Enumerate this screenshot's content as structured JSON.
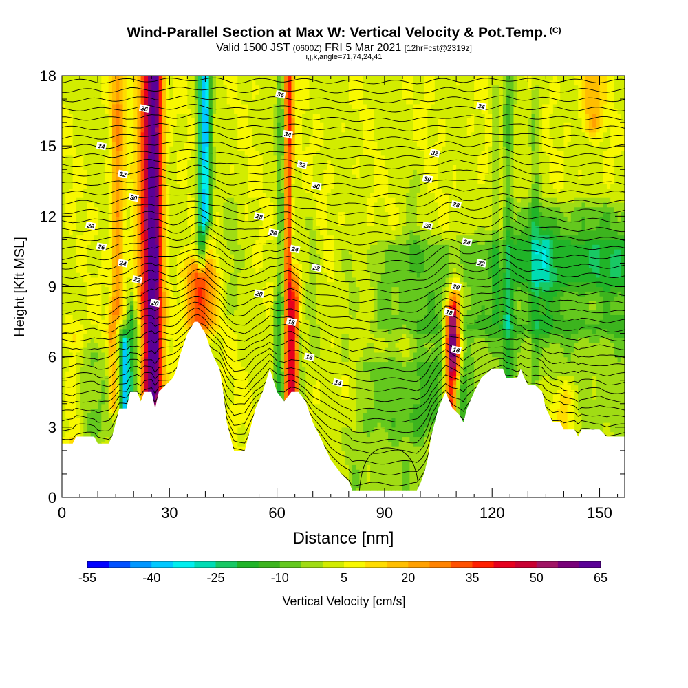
{
  "header": {
    "title": "Wind-Parallel Section at Max W: Vertical Velocity & Pot.Temp.",
    "copyright": "(C)",
    "valid_prefix": "Valid 1500 JST",
    "valid_utc": "(0600Z)",
    "valid_date": "FRI 5 Mar 2021",
    "forecast": "[12hrFcst@2319z]",
    "indices": "i,j,k,angle=71,74,24,41"
  },
  "chart_data": {
    "type": "heatmap",
    "xlabel": "Distance [nm]",
    "ylabel": "Height [Kft MSL]",
    "xlim": [
      0,
      157
    ],
    "ylim": [
      0,
      18
    ],
    "xticks": [
      0,
      30,
      60,
      90,
      120,
      150
    ],
    "yticks": [
      0,
      3,
      6,
      9,
      12,
      15,
      18
    ],
    "colorbar": {
      "label": "Vertical Velocity [cm/s]",
      "tick_labels": [
        "-55",
        "-40",
        "-25",
        "-10",
        "5",
        "20",
        "35",
        "50",
        "65"
      ],
      "tick_values": [
        -55,
        -40,
        -25,
        -10,
        5,
        20,
        35,
        50,
        65
      ],
      "colors": [
        "#0000ff",
        "#0050ff",
        "#0096ff",
        "#00c8ff",
        "#00eeee",
        "#00dcb4",
        "#18c864",
        "#20b428",
        "#3cb41e",
        "#64c81e",
        "#a0dc14",
        "#d2ec00",
        "#f8f800",
        "#ffdc00",
        "#ffbe00",
        "#ffa000",
        "#ff8200",
        "#ff5000",
        "#ff1e00",
        "#e6001e",
        "#c80032",
        "#a01464",
        "#780078",
        "#5a0096"
      ]
    },
    "terrain_profile_kft": [
      [
        0,
        2.3
      ],
      [
        3,
        2.3
      ],
      [
        4,
        2.6
      ],
      [
        9,
        2.6
      ],
      [
        10,
        2.3
      ],
      [
        13,
        2.3
      ],
      [
        14,
        2.6
      ],
      [
        15,
        3.2
      ],
      [
        16,
        3.8
      ],
      [
        18,
        3.8
      ],
      [
        19,
        4.5
      ],
      [
        21,
        4.5
      ],
      [
        22,
        4.1
      ],
      [
        23,
        4.5
      ],
      [
        25,
        4.5
      ],
      [
        26,
        3.8
      ],
      [
        27,
        4.5
      ],
      [
        29,
        4.8
      ],
      [
        31,
        5.1
      ],
      [
        32,
        5.5
      ],
      [
        33,
        6.1
      ],
      [
        35,
        7.0
      ],
      [
        37,
        7.5
      ],
      [
        38,
        7.5
      ],
      [
        40,
        7.0
      ],
      [
        42,
        6.1
      ],
      [
        44,
        5.5
      ],
      [
        45,
        4.5
      ],
      [
        46,
        3.2
      ],
      [
        47,
        2.6
      ],
      [
        48,
        2.0
      ],
      [
        51,
        2.0
      ],
      [
        52,
        2.6
      ],
      [
        54,
        3.8
      ],
      [
        56,
        4.5
      ],
      [
        58,
        5.5
      ],
      [
        60,
        4.5
      ],
      [
        62,
        4.1
      ],
      [
        64,
        4.5
      ],
      [
        66,
        4.5
      ],
      [
        68,
        4.1
      ],
      [
        70,
        3.2
      ],
      [
        72,
        2.6
      ],
      [
        75,
        1.6
      ],
      [
        78,
        1.0
      ],
      [
        80,
        0.7
      ],
      [
        81,
        0.3
      ],
      [
        88,
        0.3
      ],
      [
        96,
        0.3
      ],
      [
        99,
        0.3
      ],
      [
        100,
        0.6
      ],
      [
        101,
        1.0
      ],
      [
        102,
        1.6
      ],
      [
        103,
        2.6
      ],
      [
        104,
        3.2
      ],
      [
        105,
        3.8
      ],
      [
        107,
        4.5
      ],
      [
        109,
        3.8
      ],
      [
        111,
        3.5
      ],
      [
        112,
        3.2
      ],
      [
        113,
        3.8
      ],
      [
        115,
        4.5
      ],
      [
        117,
        5.1
      ],
      [
        120,
        5.5
      ],
      [
        123,
        5.5
      ],
      [
        124,
        5.1
      ],
      [
        127,
        5.1
      ],
      [
        128,
        5.5
      ],
      [
        129,
        5.1
      ],
      [
        130,
        4.8
      ],
      [
        132,
        4.8
      ],
      [
        134,
        4.5
      ],
      [
        135,
        3.8
      ],
      [
        136,
        3.5
      ],
      [
        137,
        3.2
      ],
      [
        139,
        3.2
      ],
      [
        140,
        2.9
      ],
      [
        143,
        2.9
      ],
      [
        144,
        2.6
      ],
      [
        145,
        2.9
      ],
      [
        150,
        2.9
      ],
      [
        152,
        2.6
      ],
      [
        157,
        2.6
      ]
    ],
    "theta_isotherm_labels": [
      {
        "text": "36",
        "x": 23,
        "y": 16.6
      },
      {
        "text": "36",
        "x": 61,
        "y": 17.2
      },
      {
        "text": "34",
        "x": 11,
        "y": 15.0
      },
      {
        "text": "34",
        "x": 63,
        "y": 15.5
      },
      {
        "text": "34",
        "x": 117,
        "y": 16.7
      },
      {
        "text": "32",
        "x": 17,
        "y": 13.8
      },
      {
        "text": "32",
        "x": 67,
        "y": 14.2
      },
      {
        "text": "32",
        "x": 104,
        "y": 14.7
      },
      {
        "text": "30",
        "x": 20,
        "y": 12.8
      },
      {
        "text": "30",
        "x": 71,
        "y": 13.3
      },
      {
        "text": "30",
        "x": 102,
        "y": 13.6
      },
      {
        "text": "28",
        "x": 8,
        "y": 11.6
      },
      {
        "text": "28",
        "x": 55,
        "y": 12.0
      },
      {
        "text": "28",
        "x": 102,
        "y": 11.6
      },
      {
        "text": "28",
        "x": 110,
        "y": 12.5
      },
      {
        "text": "26",
        "x": 11,
        "y": 10.7
      },
      {
        "text": "26",
        "x": 59,
        "y": 11.3
      },
      {
        "text": "24",
        "x": 17,
        "y": 10.0
      },
      {
        "text": "24",
        "x": 65,
        "y": 10.6
      },
      {
        "text": "24",
        "x": 113,
        "y": 10.9
      },
      {
        "text": "22",
        "x": 21,
        "y": 9.3
      },
      {
        "text": "22",
        "x": 71,
        "y": 9.8
      },
      {
        "text": "22",
        "x": 117,
        "y": 10.0
      },
      {
        "text": "20",
        "x": 26,
        "y": 8.3
      },
      {
        "text": "20",
        "x": 55,
        "y": 8.7
      },
      {
        "text": "20",
        "x": 110,
        "y": 9.0
      },
      {
        "text": "18",
        "x": 64,
        "y": 7.5
      },
      {
        "text": "18",
        "x": 108,
        "y": 7.9
      },
      {
        "text": "16",
        "x": 69,
        "y": 6.0
      },
      {
        "text": "16",
        "x": 110,
        "y": 6.3
      },
      {
        "text": "14",
        "x": 77,
        "y": 4.9
      }
    ],
    "updraft_cores": [
      {
        "x": 26.0,
        "ybot": 3.8,
        "ytop": 18.0,
        "w": 2.2,
        "peak": 50
      },
      {
        "x": 23.5,
        "ybot": 4.5,
        "ytop": 18.0,
        "w": 2.5,
        "peak": 30
      },
      {
        "x": 38.5,
        "ybot": 7.5,
        "ytop": 9.5,
        "w": 4.0,
        "peak": 32
      },
      {
        "x": 63.0,
        "ybot": 4.3,
        "ytop": 18.0,
        "w": 1.5,
        "peak": 38
      },
      {
        "x": 65.0,
        "ybot": 4.3,
        "ytop": 9.0,
        "w": 1.3,
        "peak": 28
      },
      {
        "x": 108.5,
        "ybot": 3.8,
        "ytop": 7.5,
        "w": 1.8,
        "peak": 50
      },
      {
        "x": 109.8,
        "ybot": 5.5,
        "ytop": 8.5,
        "w": 1.6,
        "peak": 28
      },
      {
        "x": 15.5,
        "ybot": 8.0,
        "ytop": 18.0,
        "w": 1.8,
        "peak": 20
      },
      {
        "x": 3.0,
        "ybot": 2.5,
        "ytop": 6.5,
        "w": 3.0,
        "peak": 12
      },
      {
        "x": 14.0,
        "ybot": 4.0,
        "ytop": 7.0,
        "w": 1.2,
        "peak": 20
      },
      {
        "x": 148.0,
        "ybot": 16.0,
        "ytop": 18.0,
        "w": 3.0,
        "peak": 15
      },
      {
        "x": 140.0,
        "ybot": 2.9,
        "ytop": 4.2,
        "w": 4.0,
        "peak": 15
      }
    ],
    "downdraft_cores": [
      {
        "x": 17.5,
        "ybot": 3.8,
        "ytop": 6.3,
        "w": 1.2,
        "peak": -40
      },
      {
        "x": 19.5,
        "ybot": 4.5,
        "ytop": 7.5,
        "w": 1.2,
        "peak": -22
      },
      {
        "x": 21.5,
        "ybot": 4.2,
        "ytop": 7.0,
        "w": 1.0,
        "peak": -15
      },
      {
        "x": 39.0,
        "ybot": 10.0,
        "ytop": 18.0,
        "w": 1.3,
        "peak": -28
      },
      {
        "x": 40.5,
        "ybot": 12.0,
        "ytop": 18.0,
        "w": 1.3,
        "peak": -30
      },
      {
        "x": 61.5,
        "ybot": 4.3,
        "ytop": 18.0,
        "w": 1.4,
        "peak": -22
      },
      {
        "x": 64.5,
        "ybot": 9.0,
        "ytop": 13.0,
        "w": 0.8,
        "peak": -12
      },
      {
        "x": 66.5,
        "ybot": 4.5,
        "ytop": 6.5,
        "w": 1.0,
        "peak": -15
      },
      {
        "x": 60.0,
        "ybot": 4.5,
        "ytop": 8.0,
        "w": 1.0,
        "peak": -12
      },
      {
        "x": 124.5,
        "ybot": 5.1,
        "ytop": 18.0,
        "w": 1.4,
        "peak": -14
      },
      {
        "x": 121.0,
        "ybot": 8.0,
        "ytop": 16.5,
        "w": 1.0,
        "peak": -10
      },
      {
        "x": 132.0,
        "ybot": 5.5,
        "ytop": 17.0,
        "w": 1.2,
        "peak": -10
      },
      {
        "x": 135.0,
        "ybot": 7.5,
        "ytop": 11.0,
        "w": 2.0,
        "peak": -8
      },
      {
        "x": 47.0,
        "ybot": 8.0,
        "ytop": 12.0,
        "w": 2.5,
        "peak": -5
      },
      {
        "x": 70.0,
        "ybot": 6.5,
        "ytop": 11.5,
        "w": 1.5,
        "peak": -6
      },
      {
        "x": 80.0,
        "ybot": 6.0,
        "ytop": 10.0,
        "w": 3.0,
        "peak": -5
      },
      {
        "x": 98.0,
        "ybot": 10.0,
        "ytop": 13.0,
        "w": 2.0,
        "peak": -5
      }
    ],
    "broad_regions": [
      {
        "x0": 85,
        "x1": 112,
        "ybot": 3.5,
        "ytop": 5.5,
        "val": -8
      },
      {
        "x0": 90,
        "x1": 157,
        "ybot": 7.5,
        "ytop": 10.5,
        "val": -9
      },
      {
        "x0": 128,
        "x1": 157,
        "ybot": 9.5,
        "ytop": 12.0,
        "val": -10
      },
      {
        "x0": 0,
        "x1": 13,
        "ybot": 3.0,
        "ytop": 6.0,
        "val": -6
      },
      {
        "x0": 100,
        "x1": 157,
        "ybot": 3.0,
        "ytop": 7.0,
        "val": -4
      },
      {
        "x0": 44,
        "x1": 56,
        "ybot": 2.0,
        "ytop": 5.0,
        "val": 5
      },
      {
        "x0": 82,
        "x1": 100,
        "ybot": 0.3,
        "ytop": 2.5,
        "val": -4
      }
    ]
  }
}
